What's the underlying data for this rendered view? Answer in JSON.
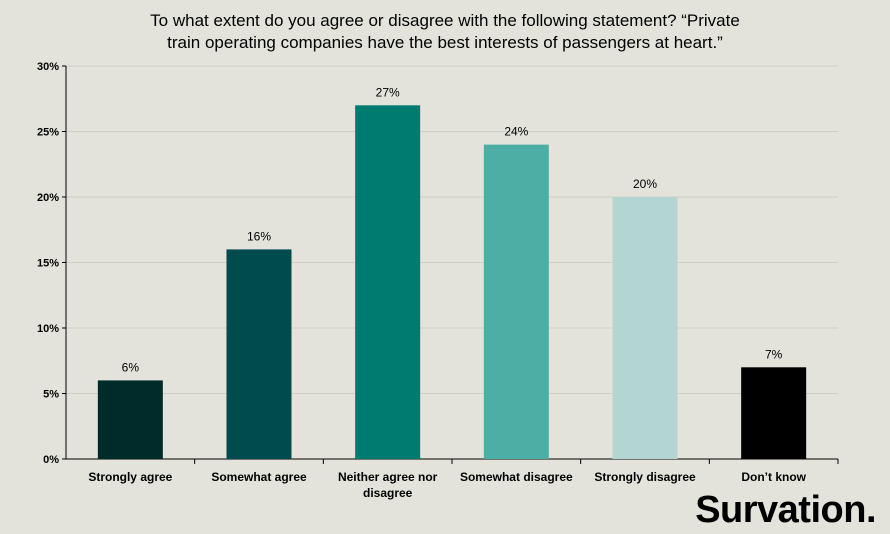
{
  "chart_data": {
    "type": "bar",
    "title_lines": [
      "To what extent do you agree or disagree with the following statement? “Private",
      "train operating companies have the best interests of passengers at heart.”"
    ],
    "categories": [
      [
        "Strongly agree"
      ],
      [
        "Somewhat agree"
      ],
      [
        "Neither agree nor",
        "disagree"
      ],
      [
        "Somewhat disagree"
      ],
      [
        "Strongly disagree"
      ],
      [
        "Don’t know"
      ]
    ],
    "values": [
      6,
      16,
      27,
      24,
      20,
      7
    ],
    "data_labels": [
      "6%",
      "16%",
      "27%",
      "24%",
      "20%",
      "7%"
    ],
    "colors": [
      "#002b2b",
      "#004b4d",
      "#007b6f",
      "#4daea6",
      "#b3d6d2",
      "#000000"
    ],
    "ylim": [
      0,
      30
    ],
    "yticks": [
      0,
      5,
      10,
      15,
      20,
      25,
      30
    ],
    "ytick_labels": [
      "0%",
      "5%",
      "10%",
      "15%",
      "20%",
      "25%",
      "30%"
    ],
    "grid": true,
    "legend": "none"
  },
  "brand": {
    "logo_text": "Survation",
    "logo_dot": "."
  }
}
